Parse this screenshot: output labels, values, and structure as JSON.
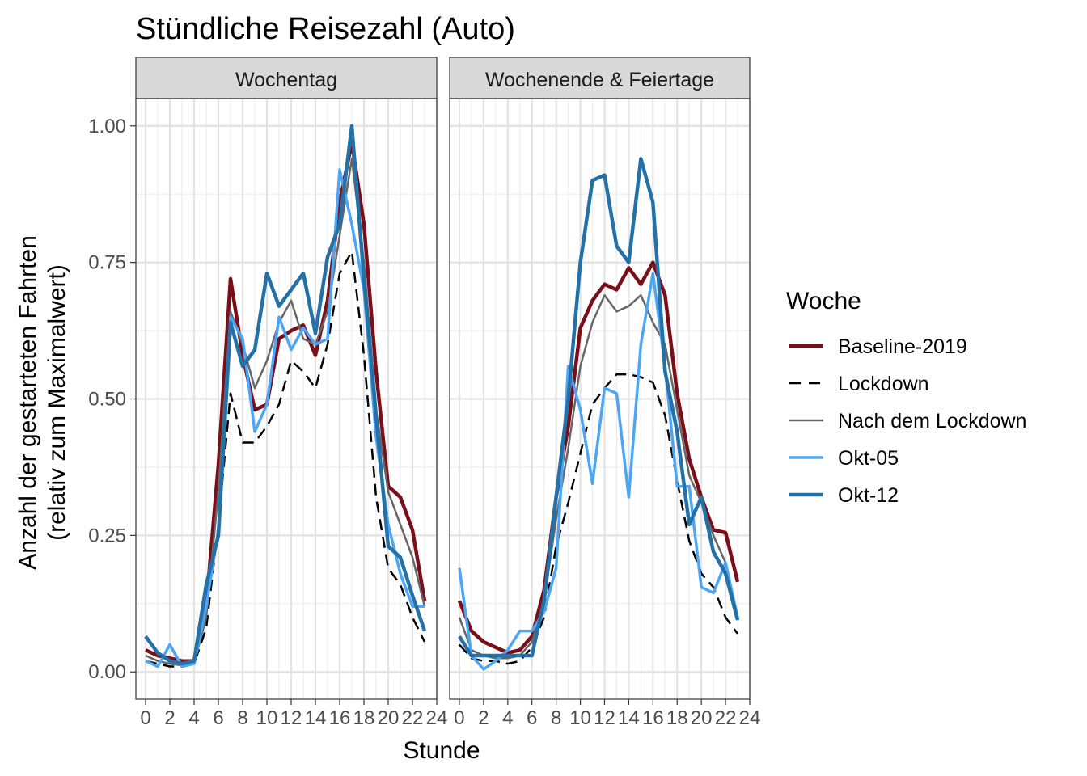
{
  "chart_data": {
    "type": "line",
    "title": "Stündliche Reisezahl (Auto)",
    "xlabel": "Stunde",
    "ylabel_line1": "Anzahl der gestarteten Fahrten",
    "ylabel_line2": "(relativ zum Maximalwert)",
    "xlim": [
      -0.8,
      24
    ],
    "ylim": [
      -0.05,
      1.05
    ],
    "x_ticks": [
      0,
      2,
      4,
      6,
      8,
      10,
      12,
      14,
      16,
      18,
      20,
      22,
      24
    ],
    "x_tick_labels": [
      "0",
      "2",
      "4",
      "6",
      "8",
      "10",
      "12",
      "14",
      "16",
      "18",
      "20",
      "22",
      "24"
    ],
    "y_ticks": [
      0,
      0.25,
      0.5,
      0.75,
      1.0
    ],
    "y_tick_labels": [
      "0.00",
      "0.25",
      "0.50",
      "0.75",
      "1.00"
    ],
    "grid": true,
    "legend": {
      "title": "Woche",
      "position": "right",
      "entries": [
        "Baseline-2019",
        "Lockdown",
        "Nach dem Lockdown",
        "Okt-05",
        "Okt-12"
      ]
    },
    "series_styles": [
      {
        "name": "Baseline-2019",
        "color": "#7a0f1a",
        "dash": "none",
        "width": 4.5
      },
      {
        "name": "Lockdown",
        "color": "#000000",
        "dash": "14,8",
        "width": 2.5
      },
      {
        "name": "Nach dem Lockdown",
        "color": "#666666",
        "dash": "none",
        "width": 2.5
      },
      {
        "name": "Okt-05",
        "color": "#4da6f5",
        "dash": "none",
        "width": 3.5
      },
      {
        "name": "Okt-12",
        "color": "#2471a8",
        "dash": "none",
        "width": 4.5
      }
    ],
    "x": [
      0,
      1,
      2,
      3,
      4,
      5,
      6,
      7,
      8,
      9,
      10,
      11,
      12,
      13,
      14,
      15,
      16,
      17,
      18,
      19,
      20,
      21,
      22,
      23
    ],
    "panels": [
      {
        "name": "Wochentag",
        "series": [
          {
            "name": "Baseline-2019",
            "values": [
              0.04,
              0.03,
              0.025,
              0.02,
              0.02,
              0.12,
              0.38,
              0.72,
              0.58,
              0.48,
              0.49,
              0.61,
              0.625,
              0.635,
              0.58,
              0.68,
              0.86,
              0.97,
              0.82,
              0.55,
              0.34,
              0.32,
              0.26,
              0.13
            ]
          },
          {
            "name": "Lockdown",
            "values": [
              0.02,
              0.015,
              0.01,
              0.01,
              0.015,
              0.08,
              0.27,
              0.51,
              0.42,
              0.42,
              0.45,
              0.49,
              0.57,
              0.55,
              0.52,
              0.6,
              0.73,
              0.77,
              0.58,
              0.32,
              0.19,
              0.16,
              0.1,
              0.055
            ]
          },
          {
            "name": "Nach dem Lockdown",
            "values": [
              0.03,
              0.02,
              0.015,
              0.012,
              0.015,
              0.1,
              0.33,
              0.66,
              0.6,
              0.52,
              0.57,
              0.64,
              0.68,
              0.61,
              0.6,
              0.66,
              0.8,
              0.94,
              0.75,
              0.48,
              0.33,
              0.27,
              0.21,
              0.12
            ]
          },
          {
            "name": "Okt-05",
            "values": [
              0.02,
              0.01,
              0.05,
              0.01,
              0.015,
              0.12,
              0.26,
              0.65,
              0.61,
              0.44,
              0.49,
              0.65,
              0.59,
              0.63,
              0.6,
              0.61,
              0.92,
              0.82,
              0.7,
              0.43,
              0.27,
              0.18,
              0.12,
              0.12
            ]
          },
          {
            "name": "Okt-12",
            "values": [
              0.065,
              0.035,
              0.02,
              0.015,
              0.02,
              0.16,
              0.25,
              0.64,
              0.56,
              0.59,
              0.73,
              0.67,
              0.7,
              0.73,
              0.62,
              0.76,
              0.82,
              1.0,
              0.72,
              0.47,
              0.23,
              0.21,
              0.14,
              0.075
            ]
          }
        ]
      },
      {
        "name": "Wochenende & Feiertage",
        "series": [
          {
            "name": "Baseline-2019",
            "values": [
              0.13,
              0.075,
              0.055,
              0.045,
              0.035,
              0.04,
              0.065,
              0.15,
              0.32,
              0.45,
              0.63,
              0.68,
              0.71,
              0.7,
              0.74,
              0.71,
              0.75,
              0.69,
              0.51,
              0.39,
              0.32,
              0.26,
              0.255,
              0.165
            ]
          },
          {
            "name": "Lockdown",
            "values": [
              0.05,
              0.025,
              0.02,
              0.02,
              0.015,
              0.02,
              0.045,
              0.1,
              0.23,
              0.31,
              0.4,
              0.49,
              0.52,
              0.545,
              0.545,
              0.54,
              0.53,
              0.47,
              0.35,
              0.24,
              0.18,
              0.155,
              0.1,
              0.07
            ]
          },
          {
            "name": "Nach dem Lockdown",
            "values": [
              0.1,
              0.04,
              0.03,
              0.025,
              0.025,
              0.03,
              0.055,
              0.13,
              0.28,
              0.41,
              0.56,
              0.64,
              0.69,
              0.66,
              0.67,
              0.69,
              0.64,
              0.6,
              0.48,
              0.36,
              0.31,
              0.25,
              0.2,
              0.1
            ]
          },
          {
            "name": "Okt-05",
            "values": [
              0.19,
              0.03,
              0.005,
              0.02,
              0.04,
              0.075,
              0.075,
              0.11,
              0.19,
              0.56,
              0.48,
              0.345,
              0.52,
              0.51,
              0.32,
              0.6,
              0.73,
              0.56,
              0.34,
              0.34,
              0.155,
              0.145,
              0.2,
              0.1
            ]
          },
          {
            "name": "Okt-12",
            "values": [
              0.065,
              0.03,
              0.03,
              0.03,
              0.03,
              0.03,
              0.03,
              0.13,
              0.32,
              0.5,
              0.75,
              0.9,
              0.91,
              0.78,
              0.75,
              0.94,
              0.86,
              0.55,
              0.44,
              0.27,
              0.32,
              0.22,
              0.18,
              0.095
            ]
          }
        ]
      }
    ]
  }
}
